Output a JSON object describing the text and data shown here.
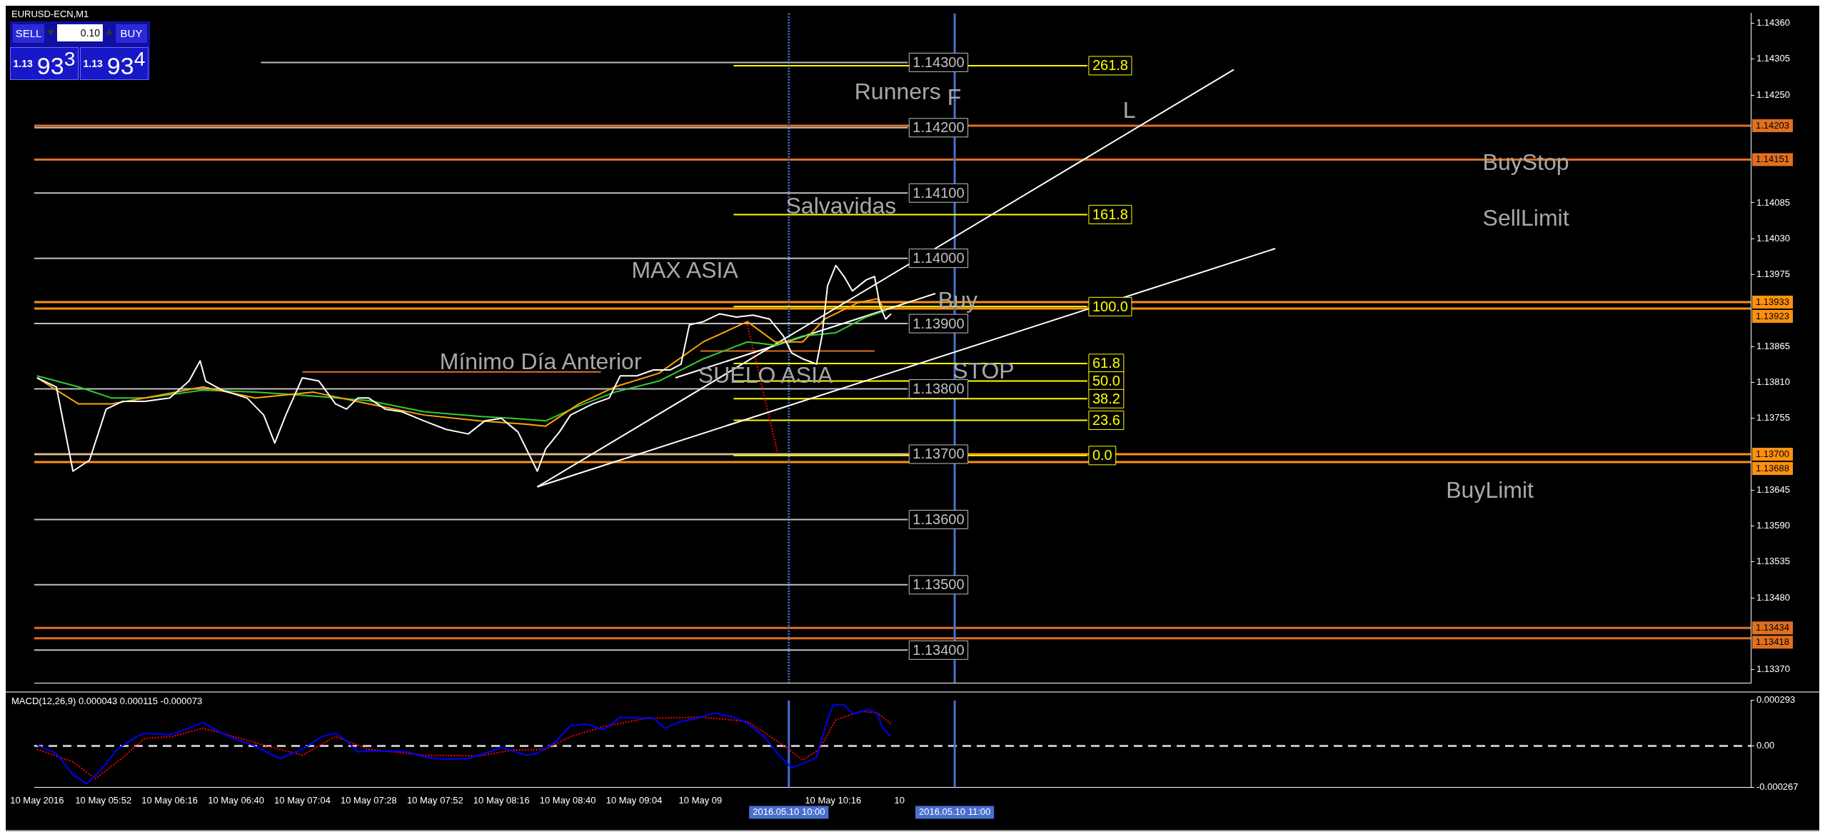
{
  "chart_data": [
    {
      "type": "line",
      "title": "EURUSD-ECN,M1",
      "xlim": [
        "2016-05-10T05:27",
        "2016-05-10T15:48"
      ],
      "ylim": [
        1.1335,
        1.14375
      ],
      "tick_labels": "y",
      "grid": false,
      "legend": false,
      "yticks": [
        {
          "value": 1.1436,
          "label": "1.14360"
        },
        {
          "value": 1.14305,
          "label": "1.14305"
        },
        {
          "value": 1.1425,
          "label": "1.14250"
        },
        {
          "value": 1.14085,
          "label": "1.14085"
        },
        {
          "value": 1.1403,
          "label": "1.14030"
        },
        {
          "value": 1.13975,
          "label": "1.13975"
        },
        {
          "value": 1.13865,
          "label": "1.13865"
        },
        {
          "value": 1.1381,
          "label": "1.13810"
        },
        {
          "value": 1.13755,
          "label": "1.13755"
        },
        {
          "value": 1.13645,
          "label": "1.13645"
        },
        {
          "value": 1.1359,
          "label": "1.13590"
        },
        {
          "value": 1.13535,
          "label": "1.13535"
        },
        {
          "value": 1.1348,
          "label": "1.13480"
        },
        {
          "value": 1.1337,
          "label": "1.13370"
        }
      ],
      "series": [
        {
          "color": "#ffffff",
          "x": [
            "2016-05-10T05:28",
            "2016-05-10T05:35",
            "2016-05-10T05:41",
            "2016-05-10T05:47",
            "2016-05-10T05:53",
            "2016-05-10T05:59",
            "2016-05-10T06:07",
            "2016-05-10T06:16",
            "2016-05-10T06:23",
            "2016-05-10T06:27",
            "2016-05-10T06:29",
            "2016-05-10T06:35",
            "2016-05-10T06:44",
            "2016-05-10T06:50",
            "2016-05-10T06:54",
            "2016-05-10T06:58",
            "2016-05-10T07:04",
            "2016-05-10T07:10",
            "2016-05-10T07:16",
            "2016-05-10T07:20",
            "2016-05-10T07:24",
            "2016-05-10T07:28",
            "2016-05-10T07:34",
            "2016-05-10T07:40",
            "2016-05-10T07:48",
            "2016-05-10T07:56",
            "2016-05-10T08:04",
            "2016-05-10T08:10",
            "2016-05-10T08:16",
            "2016-05-10T08:22",
            "2016-05-10T08:29",
            "2016-05-10T08:32",
            "2016-05-10T08:37",
            "2016-05-10T08:41",
            "2016-05-10T08:49",
            "2016-05-10T08:55",
            "2016-05-10T08:59",
            "2016-05-10T09:05",
            "2016-05-10T09:11",
            "2016-05-10T09:17",
            "2016-05-10T09:21",
            "2016-05-10T09:24",
            "2016-05-10T09:29",
            "2016-05-10T09:35",
            "2016-05-10T09:41",
            "2016-05-10T09:47",
            "2016-05-10T09:53",
            "2016-05-10T09:58",
            "2016-05-10T10:01",
            "2016-05-10T10:05",
            "2016-05-10T10:10",
            "2016-05-10T10:12",
            "2016-05-10T10:14",
            "2016-05-10T10:17",
            "2016-05-10T10:20",
            "2016-05-10T10:23",
            "2016-05-10T10:28",
            "2016-05-10T10:31",
            "2016-05-10T10:33",
            "2016-05-10T10:35",
            "2016-05-10T10:37"
          ],
          "values": [
            1.13817,
            1.13803,
            1.13674,
            1.13691,
            1.13769,
            1.13781,
            1.13781,
            1.13786,
            1.13812,
            1.13843,
            1.13812,
            1.13798,
            1.13786,
            1.1376,
            1.13717,
            1.1376,
            1.13817,
            1.13812,
            1.13777,
            1.13769,
            1.13786,
            1.13786,
            1.13769,
            1.13765,
            1.13751,
            1.13738,
            1.13731,
            1.13751,
            1.13755,
            1.13734,
            1.13674,
            1.13708,
            1.13734,
            1.1376,
            1.13777,
            1.13786,
            1.1382,
            1.1382,
            1.13829,
            1.13829,
            1.13838,
            1.13898,
            1.13903,
            1.13915,
            1.1391,
            1.13913,
            1.13907,
            1.13881,
            1.13855,
            1.13846,
            1.13838,
            1.13881,
            1.13958,
            1.13989,
            1.13972,
            1.1395,
            1.13967,
            1.13972,
            1.13927,
            1.13907,
            1.13915
          ]
        },
        {
          "color": "#ffa500",
          "x": [
            "2016-05-10T05:28",
            "2016-05-10T05:43",
            "2016-05-10T05:55",
            "2016-05-10T06:07",
            "2016-05-10T06:28",
            "2016-05-10T06:47",
            "2016-05-10T07:08",
            "2016-05-10T07:28",
            "2016-05-10T07:48",
            "2016-05-10T08:08",
            "2016-05-10T08:25",
            "2016-05-10T08:32",
            "2016-05-10T08:44",
            "2016-05-10T08:57",
            "2016-05-10T09:13",
            "2016-05-10T09:29",
            "2016-05-10T09:45",
            "2016-05-10T09:55",
            "2016-05-10T10:05",
            "2016-05-10T10:13",
            "2016-05-10T10:25",
            "2016-05-10T10:32",
            "2016-05-10T10:35"
          ],
          "values": [
            1.13817,
            1.13777,
            1.13777,
            1.13786,
            1.13803,
            1.13786,
            1.13795,
            1.13777,
            1.1376,
            1.13751,
            1.13746,
            1.13743,
            1.13777,
            1.13803,
            1.13824,
            1.13872,
            1.13903,
            1.13872,
            1.13872,
            1.13907,
            1.13932,
            1.13938,
            1.1392
          ]
        },
        {
          "color": "#32cd32",
          "x": [
            "2016-05-10T05:28",
            "2016-05-10T05:43",
            "2016-05-10T05:55",
            "2016-05-10T06:07",
            "2016-05-10T06:28",
            "2016-05-10T06:47",
            "2016-05-10T07:08",
            "2016-05-10T07:28",
            "2016-05-10T07:48",
            "2016-05-10T08:08",
            "2016-05-10T08:20",
            "2016-05-10T08:32",
            "2016-05-10T08:44",
            "2016-05-10T08:57",
            "2016-05-10T09:13",
            "2016-05-10T09:29",
            "2016-05-10T09:45",
            "2016-05-10T09:55",
            "2016-05-10T10:05",
            "2016-05-10T10:17",
            "2016-05-10T10:28",
            "2016-05-10T10:35"
          ],
          "values": [
            1.1382,
            1.13803,
            1.13786,
            1.13786,
            1.13798,
            1.13795,
            1.13789,
            1.13782,
            1.13765,
            1.13758,
            1.13755,
            1.13751,
            1.13774,
            1.13795,
            1.13812,
            1.13846,
            1.13872,
            1.13867,
            1.13881,
            1.13886,
            1.1391,
            1.1392
          ]
        },
        {
          "color": "#ffffff",
          "x": [
            "2016-05-10T08:29",
            "2016-05-10T12:41"
          ],
          "values": [
            1.1365,
            1.14289
          ]
        },
        {
          "color": "#ffffff",
          "x": [
            "2016-05-10T08:29",
            "2016-05-10T12:56"
          ],
          "values": [
            1.1365,
            1.14015
          ]
        },
        {
          "color": "#ffffff",
          "x": [
            "2016-05-10T09:19",
            "2016-05-10T10:53"
          ],
          "values": [
            1.13817,
            1.13946
          ]
        },
        {
          "color": "#e07020",
          "x": [
            "2016-05-10T07:04",
            "2016-05-10T08:52"
          ],
          "values": [
            1.13826,
            1.13826
          ]
        },
        {
          "color": "#e07020",
          "x": [
            "2016-05-10T09:28",
            "2016-05-10T10:31"
          ],
          "values": [
            1.13858,
            1.13858
          ]
        },
        {
          "color": "#ff0000",
          "line_style": "dotted",
          "x": [
            "2016-05-10T09:45",
            "2016-05-10T09:56"
          ],
          "values": [
            1.13898,
            1.13701
          ]
        },
        {
          "color": "#c0c0c0",
          "x": [
            "2016-05-10T06:49",
            "2016-05-10T10:43"
          ],
          "values": [
            1.143,
            1.143
          ]
        },
        {
          "color": "#c0c0c0",
          "x": [
            "2016-05-10T05:27",
            "2016-05-10T10:43"
          ],
          "values": [
            1.142,
            1.142
          ]
        },
        {
          "color": "#c0c0c0",
          "x": [
            "2016-05-10T05:27",
            "2016-05-10T10:43"
          ],
          "values": [
            1.141,
            1.141
          ]
        },
        {
          "color": "#c0c0c0",
          "x": [
            "2016-05-10T05:27",
            "2016-05-10T10:43"
          ],
          "values": [
            1.14,
            1.14
          ]
        },
        {
          "color": "#c0c0c0",
          "x": [
            "2016-05-10T05:27",
            "2016-05-10T10:43"
          ],
          "values": [
            1.139,
            1.139
          ]
        },
        {
          "color": "#c0c0c0",
          "x": [
            "2016-05-10T05:27",
            "2016-05-10T10:43"
          ],
          "values": [
            1.138,
            1.138
          ]
        },
        {
          "color": "#c0c0c0",
          "x": [
            "2016-05-10T05:27",
            "2016-05-10T10:43"
          ],
          "values": [
            1.137,
            1.137
          ]
        },
        {
          "color": "#c0c0c0",
          "x": [
            "2016-05-10T05:27",
            "2016-05-10T10:43"
          ],
          "values": [
            1.136,
            1.136
          ]
        },
        {
          "color": "#c0c0c0",
          "x": [
            "2016-05-10T05:27",
            "2016-05-10T10:43"
          ],
          "values": [
            1.135,
            1.135
          ]
        },
        {
          "color": "#c0c0c0",
          "x": [
            "2016-05-10T05:27",
            "2016-05-10T10:43"
          ],
          "values": [
            1.134,
            1.134
          ]
        },
        {
          "color": "#ffff00",
          "x": [
            "2016-05-10T09:40",
            "2016-05-10T11:48"
          ],
          "values": [
            1.14295,
            1.14295
          ]
        },
        {
          "color": "#ffff00",
          "x": [
            "2016-05-10T09:40",
            "2016-05-10T11:48"
          ],
          "values": [
            1.14067,
            1.14067
          ]
        },
        {
          "color": "#ffff00",
          "x": [
            "2016-05-10T09:40",
            "2016-05-10T11:48"
          ],
          "values": [
            1.13926,
            1.13926
          ]
        },
        {
          "color": "#ffff00",
          "x": [
            "2016-05-10T09:40",
            "2016-05-10T11:48"
          ],
          "values": [
            1.13839,
            1.13839
          ]
        },
        {
          "color": "#ffff00",
          "x": [
            "2016-05-10T09:40",
            "2016-05-10T11:48"
          ],
          "values": [
            1.13812,
            1.13812
          ]
        },
        {
          "color": "#ffff00",
          "x": [
            "2016-05-10T09:40",
            "2016-05-10T11:48"
          ],
          "values": [
            1.13785,
            1.13785
          ]
        },
        {
          "color": "#ffff00",
          "x": [
            "2016-05-10T09:40",
            "2016-05-10T11:48"
          ],
          "values": [
            1.13752,
            1.13752
          ]
        },
        {
          "color": "#ffff00",
          "x": [
            "2016-05-10T09:40",
            "2016-05-10T11:48"
          ],
          "values": [
            1.13698,
            1.13698
          ]
        }
      ],
      "ref_lines": [
        {
          "axis": "y",
          "value": 1.14203,
          "label": "1.14203",
          "color": "#e07020"
        },
        {
          "axis": "y",
          "value": 1.14151,
          "label": "1.14151",
          "color": "#e07020"
        },
        {
          "axis": "y",
          "value": 1.13933,
          "label": "1.13933",
          "color": "#ff9010"
        },
        {
          "axis": "y",
          "value": 1.13923,
          "label": "1.13923",
          "color": "#ff9010"
        },
        {
          "axis": "y",
          "value": 1.137,
          "label": "1.13700",
          "color": "#ff9010"
        },
        {
          "axis": "y",
          "value": 1.13688,
          "label": "1.13688",
          "color": "#ff9010"
        },
        {
          "axis": "y",
          "value": 1.13434,
          "label": "1.13434",
          "color": "#e07020"
        },
        {
          "axis": "y",
          "value": 1.13418,
          "label": "1.13418",
          "color": "#e07020"
        },
        {
          "axis": "x",
          "value": "2016-05-10T10:00",
          "color": "#4a6fd0",
          "line_style": "dotted"
        },
        {
          "axis": "x",
          "value": "2016-05-10T11:00",
          "color": "#4a6fd0"
        }
      ],
      "annotations": [
        "SELL",
        "0.10",
        "BUY",
        "1.13",
        "93$^{3}$",
        "1.13",
        "93$^{4}$",
        "Runners",
        "F",
        "L",
        "BuyStop",
        "SellLimit",
        "Salvavidas",
        "MAX ASIA",
        "Buy",
        "Mínimo Día Anterior",
        "SUELO ASIA",
        "STOP",
        "BuyLimit",
        {
          "text": "1.14300",
          "x": "2016-05-10T10:43",
          "y": 1.143
        },
        {
          "text": "1.14200",
          "x": "2016-05-10T10:43",
          "y": 1.142
        },
        {
          "text": "1.14100",
          "x": "2016-05-10T10:43",
          "y": 1.141
        },
        {
          "text": "1.14000",
          "x": "2016-05-10T10:43",
          "y": 1.14
        },
        {
          "text": "1.13900",
          "x": "2016-05-10T10:43",
          "y": 1.139
        },
        {
          "text": "1.13800",
          "x": "2016-05-10T10:43",
          "y": 1.138
        },
        {
          "text": "1.13700",
          "x": "2016-05-10T10:43",
          "y": 1.137
        },
        {
          "text": "1.13600",
          "x": "2016-05-10T10:43",
          "y": 1.136
        },
        {
          "text": "1.13500",
          "x": "2016-05-10T10:43",
          "y": 1.135
        },
        {
          "text": "1.13400",
          "x": "2016-05-10T10:43",
          "y": 1.134
        },
        {
          "text": "261.8",
          "x": "2016-05-10T11:48",
          "y": 1.14295
        },
        {
          "text": "161.8",
          "x": "2016-05-10T11:48",
          "y": 1.14067
        },
        {
          "text": "100.0",
          "x": "2016-05-10T11:48",
          "y": 1.13926
        },
        {
          "text": "61.8",
          "x": "2016-05-10T11:48",
          "y": 1.13839
        },
        {
          "text": "50.0",
          "x": "2016-05-10T11:48",
          "y": 1.13812
        },
        {
          "text": "38.2",
          "x": "2016-05-10T11:48",
          "y": 1.13785
        },
        {
          "text": "23.6",
          "x": "2016-05-10T11:48",
          "y": 1.13752
        },
        {
          "text": "0.0",
          "x": "2016-05-10T11:48",
          "y": 1.13698
        }
      ]
    },
    {
      "type": "line",
      "title": "MACD(12,26,9) 0.000043 0.000115 -0.000073",
      "xlim": [
        "2016-05-10T05:27",
        "2016-05-10T15:48"
      ],
      "ylim": [
        -0.000267,
        0.000293
      ],
      "grid": false,
      "legend": false,
      "xticks": [
        {
          "value": "2016-05-10T05:28",
          "label": "10 May 2016"
        },
        {
          "value": "2016-05-10T05:52",
          "label": "10 May 05:52"
        },
        {
          "value": "2016-05-10T06:16",
          "label": "10 May 06:16"
        },
        {
          "value": "2016-05-10T06:40",
          "label": "10 May 06:40"
        },
        {
          "value": "2016-05-10T07:04",
          "label": "10 May 07:04"
        },
        {
          "value": "2016-05-10T07:28",
          "label": "10 May 07:28"
        },
        {
          "value": "2016-05-10T07:52",
          "label": "10 May 07:52"
        },
        {
          "value": "2016-05-10T08:16",
          "label": "10 May 08:16"
        },
        {
          "value": "2016-05-10T08:40",
          "label": "10 May 08:40"
        },
        {
          "value": "2016-05-10T09:04",
          "label": "10 May 09:04"
        },
        {
          "value": "2016-05-10T09:28",
          "label": "10 May 09"
        },
        {
          "value": "2016-05-10T10:16",
          "label": "10 May 10:16"
        },
        {
          "value": "2016-05-10T10:40",
          "label": "10"
        }
      ],
      "yticks": [
        0.000293,
        {
          "value": 0,
          "label": "0.00"
        },
        -0.000267
      ],
      "series": [
        {
          "color": "#0000ff",
          "x": [
            "2016-05-10T05:28",
            "2016-05-10T05:35",
            "2016-05-10T05:41",
            "2016-05-10T05:46",
            "2016-05-10T05:51",
            "2016-05-10T05:57",
            "2016-05-10T06:04",
            "2016-05-10T06:07",
            "2016-05-10T06:16",
            "2016-05-10T06:23",
            "2016-05-10T06:28",
            "2016-05-10T06:34",
            "2016-05-10T06:40",
            "2016-05-10T06:46",
            "2016-05-10T06:52",
            "2016-05-10T06:56",
            "2016-05-10T07:04",
            "2016-05-10T07:11",
            "2016-05-10T07:16",
            "2016-05-10T07:20",
            "2016-05-10T07:24",
            "2016-05-10T07:28",
            "2016-05-10T07:36",
            "2016-05-10T07:42",
            "2016-05-10T07:48",
            "2016-05-10T07:56",
            "2016-05-10T08:04",
            "2016-05-10T08:10",
            "2016-05-10T08:16",
            "2016-05-10T08:20",
            "2016-05-10T08:25",
            "2016-05-10T08:29",
            "2016-05-10T08:35",
            "2016-05-10T08:41",
            "2016-05-10T08:47",
            "2016-05-10T08:53",
            "2016-05-10T08:59",
            "2016-05-10T09:05",
            "2016-05-10T09:11",
            "2016-05-10T09:15",
            "2016-05-10T09:21",
            "2016-05-10T09:27",
            "2016-05-10T09:33",
            "2016-05-10T09:39",
            "2016-05-10T09:45",
            "2016-05-10T09:51",
            "2016-05-10T09:56",
            "2016-05-10T10:01",
            "2016-05-10T10:05",
            "2016-05-10T10:10",
            "2016-05-10T10:13",
            "2016-05-10T10:16",
            "2016-05-10T10:20",
            "2016-05-10T10:23",
            "2016-05-10T10:29",
            "2016-05-10T10:32",
            "2016-05-10T10:34",
            "2016-05-10T10:37"
          ],
          "values": [
            5e-06,
            -4.9e-05,
            -0.000185,
            -0.000244,
            -0.000157,
            -2.2e-05,
            6e-05,
            8.1e-05,
            7.1e-05,
            0.000114,
            0.000152,
            8.7e-05,
            4.3e-05,
            5e-06,
            -4.9e-05,
            -8.1e-05,
            -2.2e-05,
            6e-05,
            8.1e-05,
            3.3e-05,
            -3.8e-05,
            -3.3e-05,
            -3.3e-05,
            -3.8e-05,
            -7.1e-05,
            -8.7e-05,
            -8.1e-05,
            -4.9e-05,
            -1.1e-05,
            -3.3e-05,
            -6e-05,
            -4.9e-05,
            1.6e-05,
            0.00013,
            0.000141,
            0.000103,
            0.000185,
            0.000179,
            0.000179,
            0.000114,
            0.000157,
            0.000179,
            0.000212,
            0.00019,
            0.000147,
            6e-05,
            -4.9e-05,
            -0.000141,
            -0.000114,
            -7.6e-05,
            0.000114,
            0.000266,
            0.000266,
            0.000206,
            0.000233,
            0.000206,
            0.000114,
            6e-05
          ]
        },
        {
          "color": "#ff0000",
          "line_style": "dotted",
          "x": [
            "2016-05-10T05:28",
            "2016-05-10T05:41",
            "2016-05-10T05:49",
            "2016-05-10T05:59",
            "2016-05-10T06:07",
            "2016-05-10T06:17",
            "2016-05-10T06:28",
            "2016-05-10T06:35",
            "2016-05-10T06:52",
            "2016-05-10T07:04",
            "2016-05-10T07:16",
            "2016-05-10T07:28",
            "2016-05-10T07:48",
            "2016-05-10T08:08",
            "2016-05-10T08:20",
            "2016-05-10T08:32",
            "2016-05-10T08:41",
            "2016-05-10T08:53",
            "2016-05-10T09:09",
            "2016-05-10T09:29",
            "2016-05-10T09:45",
            "2016-05-10T09:58",
            "2016-05-10T10:05",
            "2016-05-10T10:11",
            "2016-05-10T10:17",
            "2016-05-10T10:26",
            "2016-05-10T10:32",
            "2016-05-10T10:37"
          ],
          "values": [
            -2.2e-05,
            -0.000103,
            -0.000212,
            -7.6e-05,
            4.9e-05,
            6e-05,
            0.000114,
            8.1e-05,
            -5e-06,
            -6e-05,
            6e-05,
            -2.2e-05,
            -6e-05,
            -6.5e-05,
            -2.7e-05,
            -2.2e-05,
            6e-05,
            0.000125,
            0.000179,
            0.000185,
            0.000157,
            5e-06,
            -9.2e-05,
            -2.2e-05,
            0.000168,
            0.000223,
            0.000212,
            0.000141
          ]
        }
      ],
      "ref_lines": [
        {
          "axis": "y",
          "value": 0,
          "color": "#c0c0c0",
          "line_style": "dashed"
        },
        {
          "axis": "x",
          "value": "2016-05-10T10:00",
          "label": "2016.05.10 10:00",
          "color": "#4a6fd0"
        },
        {
          "axis": "x",
          "value": "2016-05-10T11:00",
          "label": "2016.05.10 11:00",
          "color": "#4a6fd0"
        }
      ]
    }
  ]
}
